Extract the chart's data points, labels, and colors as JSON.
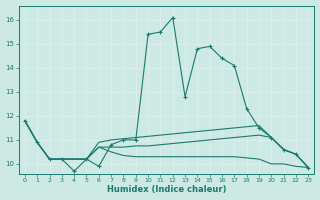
{
  "xlabel": "Humidex (Indice chaleur)",
  "ylabel": "",
  "bg_color": "#cce9e4",
  "grid_color": "#dff0ed",
  "line_color": "#1a7a6e",
  "xlim": [
    -0.5,
    23.5
  ],
  "ylim": [
    9.6,
    16.6
  ],
  "yticks": [
    10,
    11,
    12,
    13,
    14,
    15,
    16
  ],
  "xticks": [
    0,
    1,
    2,
    3,
    4,
    5,
    6,
    7,
    8,
    9,
    10,
    11,
    12,
    13,
    14,
    15,
    16,
    17,
    18,
    19,
    20,
    21,
    22,
    23
  ],
  "series1": [
    [
      0,
      11.8
    ],
    [
      1,
      10.9
    ],
    [
      2,
      10.2
    ],
    [
      3,
      10.2
    ],
    [
      4,
      9.7
    ],
    [
      5,
      10.2
    ],
    [
      6,
      9.9
    ],
    [
      7,
      10.8
    ],
    [
      8,
      11.0
    ],
    [
      9,
      11.0
    ],
    [
      10,
      15.4
    ],
    [
      11,
      15.5
    ],
    [
      12,
      16.1
    ],
    [
      13,
      12.8
    ],
    [
      14,
      14.8
    ],
    [
      15,
      14.9
    ],
    [
      16,
      14.4
    ],
    [
      17,
      14.1
    ],
    [
      18,
      12.3
    ],
    [
      19,
      11.5
    ],
    [
      20,
      11.1
    ],
    [
      21,
      10.6
    ],
    [
      22,
      10.4
    ],
    [
      23,
      9.85
    ]
  ],
  "series2": [
    [
      0,
      11.8
    ],
    [
      1,
      10.9
    ],
    [
      2,
      10.2
    ],
    [
      3,
      10.2
    ],
    [
      4,
      10.2
    ],
    [
      5,
      10.2
    ],
    [
      6,
      10.9
    ],
    [
      7,
      11.0
    ],
    [
      8,
      11.05
    ],
    [
      9,
      11.1
    ],
    [
      10,
      11.15
    ],
    [
      11,
      11.2
    ],
    [
      12,
      11.25
    ],
    [
      13,
      11.3
    ],
    [
      14,
      11.35
    ],
    [
      15,
      11.4
    ],
    [
      16,
      11.45
    ],
    [
      17,
      11.5
    ],
    [
      18,
      11.55
    ],
    [
      19,
      11.6
    ],
    [
      20,
      11.1
    ],
    [
      21,
      10.6
    ],
    [
      22,
      10.4
    ],
    [
      23,
      9.85
    ]
  ],
  "series3": [
    [
      0,
      11.8
    ],
    [
      1,
      10.9
    ],
    [
      2,
      10.2
    ],
    [
      3,
      10.2
    ],
    [
      4,
      10.2
    ],
    [
      5,
      10.2
    ],
    [
      6,
      10.7
    ],
    [
      7,
      10.5
    ],
    [
      8,
      10.35
    ],
    [
      9,
      10.3
    ],
    [
      10,
      10.3
    ],
    [
      11,
      10.3
    ],
    [
      12,
      10.3
    ],
    [
      13,
      10.3
    ],
    [
      14,
      10.3
    ],
    [
      15,
      10.3
    ],
    [
      16,
      10.3
    ],
    [
      17,
      10.3
    ],
    [
      18,
      10.25
    ],
    [
      19,
      10.2
    ],
    [
      20,
      10.0
    ],
    [
      21,
      10.0
    ],
    [
      22,
      9.9
    ],
    [
      23,
      9.85
    ]
  ],
  "series4": [
    [
      0,
      11.8
    ],
    [
      1,
      10.9
    ],
    [
      2,
      10.2
    ],
    [
      3,
      10.2
    ],
    [
      4,
      10.2
    ],
    [
      5,
      10.2
    ],
    [
      6,
      10.7
    ],
    [
      7,
      10.7
    ],
    [
      8,
      10.7
    ],
    [
      9,
      10.75
    ],
    [
      10,
      10.75
    ],
    [
      11,
      10.8
    ],
    [
      12,
      10.85
    ],
    [
      13,
      10.9
    ],
    [
      14,
      10.95
    ],
    [
      15,
      11.0
    ],
    [
      16,
      11.05
    ],
    [
      17,
      11.1
    ],
    [
      18,
      11.15
    ],
    [
      19,
      11.2
    ],
    [
      20,
      11.1
    ],
    [
      21,
      10.6
    ],
    [
      22,
      10.4
    ],
    [
      23,
      9.85
    ]
  ]
}
